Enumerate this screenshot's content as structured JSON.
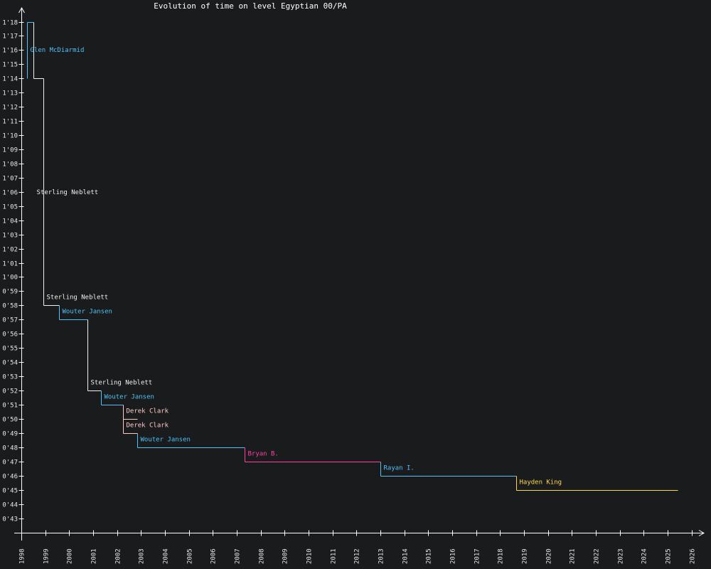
{
  "chart_data": {
    "type": "line",
    "step": "post",
    "title": "Evolution of time on level Egyptian 00/PA",
    "xlabel": "",
    "ylabel": "",
    "xlim": [
      1998,
      2026
    ],
    "ylim": [
      43,
      78
    ],
    "x_ticks": [
      "1998",
      "1999",
      "2000",
      "2001",
      "2002",
      "2003",
      "2004",
      "2005",
      "2006",
      "2007",
      "2008",
      "2009",
      "2010",
      "2011",
      "2012",
      "2013",
      "2014",
      "2015",
      "2016",
      "2017",
      "2018",
      "2019",
      "2020",
      "2021",
      "2022",
      "2023",
      "2024",
      "2025",
      "2026"
    ],
    "y_ticks": [
      "0'43",
      "0'44",
      "0'45",
      "0'46",
      "0'47",
      "0'48",
      "0'49",
      "0'50",
      "0'51",
      "0'52",
      "0'53",
      "0'54",
      "0'55",
      "0'56",
      "0'57",
      "0'58",
      "0'59",
      "1'00",
      "1'01",
      "1'02",
      "1'03",
      "1'04",
      "1'05",
      "1'06",
      "1'07",
      "1'08",
      "1'09",
      "1'10",
      "1'11",
      "1'12",
      "1'13",
      "1'14",
      "1'15",
      "1'16",
      "1'17",
      "1'18"
    ],
    "grid": false,
    "records": [
      {
        "player": "Glen McDiarmid",
        "date": "1998-04",
        "time_s": 78,
        "end": "1998-07",
        "color": "#4fc3f7"
      },
      {
        "player": "Sterling Neblett",
        "date": "1998-07",
        "time_s": 74,
        "end": "1998-12",
        "color": "#f0f0f0"
      },
      {
        "player": "Sterling Neblett",
        "date": "1998-12",
        "time_s": 58,
        "end": "1999-08",
        "color": "#f0f0f0"
      },
      {
        "player": "Wouter Jansen",
        "date": "1999-08",
        "time_s": 57,
        "end": "2000-10",
        "color": "#4fc3f7"
      },
      {
        "player": "Sterling Neblett",
        "date": "2000-10",
        "time_s": 52,
        "end": "2001-05",
        "color": "#f0f0f0"
      },
      {
        "player": "Wouter Jansen",
        "date": "2001-05",
        "time_s": 51,
        "end": "2002-04",
        "color": "#4fc3f7"
      },
      {
        "player": "Derek Clark",
        "date": "2002-04",
        "time_s": 50,
        "end": "2002-11",
        "color": "#ffc8c8"
      },
      {
        "player": "Derek Clark",
        "date": "2002-04",
        "time_s": 49,
        "end": "2002-11",
        "color": "#ffc8c8"
      },
      {
        "player": "Wouter Jansen",
        "date": "2002-11",
        "time_s": 48,
        "end": "2007-05",
        "color": "#4fc3f7"
      },
      {
        "player": "Bryan B.",
        "date": "2007-05",
        "time_s": 47,
        "end": "2013-01",
        "color": "#ff3fa4"
      },
      {
        "player": "Rayan I.",
        "date": "2013-01",
        "time_s": 46,
        "end": "2018-09",
        "color": "#4fc3f7"
      },
      {
        "player": "Hayden King",
        "date": "2018-09",
        "time_s": 45,
        "end": "2025-06",
        "color": "#ffd84a"
      }
    ]
  }
}
